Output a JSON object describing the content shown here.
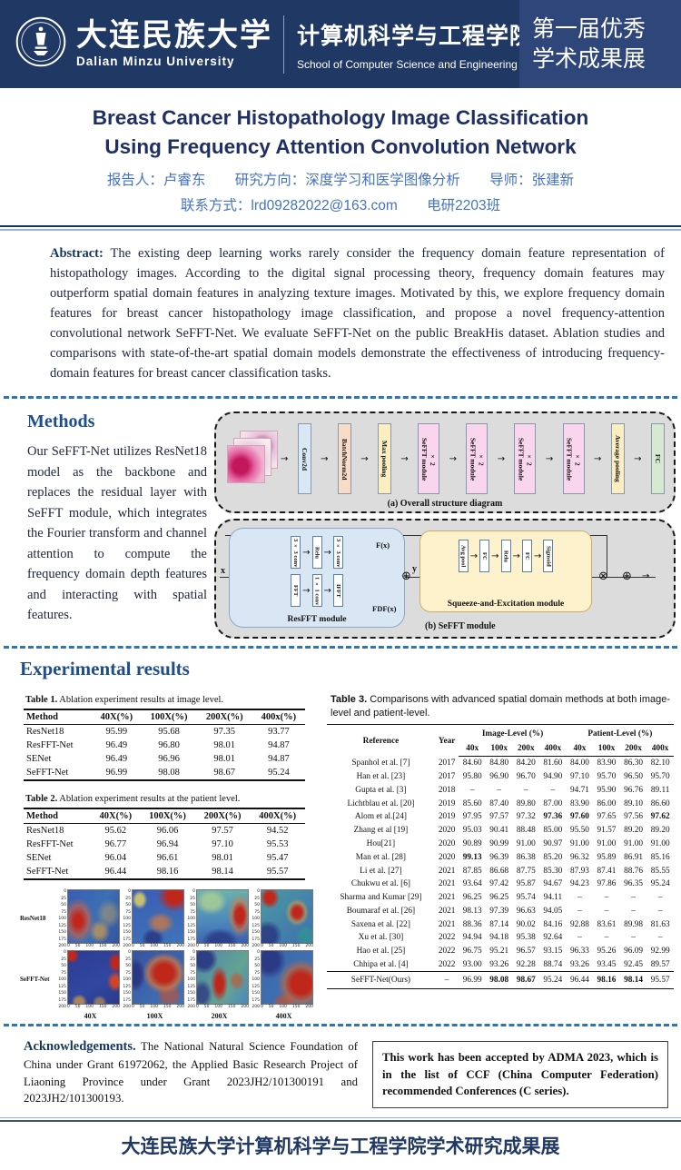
{
  "header": {
    "university_cn": "大连民族大学",
    "university_en": "Dalian Minzu University",
    "college_cn": "计算机科学与工程学院",
    "college_en": "School of Computer Science and Engineering",
    "banner_line1": "第一届优秀",
    "banner_line2": "学术成果展",
    "header_bg": "#203864",
    "banner_bg": "#2e4679"
  },
  "title": {
    "line1": "Breast Cancer Histopathology Image  Classification",
    "line2": "Using Frequency Attention Convolution Network",
    "presenter": "报告人：卢睿东",
    "direction": "研究方向：深度学习和医学图像分析",
    "advisor": "导师：张建新",
    "contact": "联系方式：lrd09282022@163.com",
    "class_name": "电研2203班"
  },
  "abstract": {
    "label": "Abstract:",
    "text": "The existing deep learning works rarely consider the frequency domain feature representation of histopathology images. According to the digital signal processing theory, frequency domain features may outperform spatial domain features in analyzing texture images. Motivated by this, we explore frequency domain features for breast cancer histopathology image classification, and propose a novel frequency-attention convolutional network SeFFT-Net. We evaluate SeFFT-Net on the public BreakHis dataset. Ablation studies and comparisons with state-of-the-art spatial domain models demonstrate the effectiveness of introducing frequency-domain features for breast cancer classification tasks."
  },
  "methods": {
    "heading": "Methods",
    "text": "Our SeFFT-Net utilizes ResNet18 model as the backbone and replaces the residual layer with SeFFT module, which integrates the Fourier transform and channel attention to compute the frequency domain depth features and interacting with spatial features."
  },
  "diagram_a": {
    "caption": "(a) Overall structure diagram",
    "blocks": [
      {
        "label": "Conv2d",
        "color": "#d9e8f6"
      },
      {
        "label": "BatchNorm2d",
        "color": "#f8dcc7"
      },
      {
        "label": "Max pooling",
        "color": "#fdeec2"
      },
      {
        "label": "SeFFT module|× 2",
        "color": "#fad6ee"
      },
      {
        "label": "SeFFT module|× 2",
        "color": "#fad6ee"
      },
      {
        "label": "SeFFT module|× 2",
        "color": "#fad6ee"
      },
      {
        "label": "SeFFT module|× 2",
        "color": "#fad6ee"
      },
      {
        "label": "Average pooling",
        "color": "#fdeec2"
      },
      {
        "label": "FC",
        "color": "#d7e9d1"
      }
    ]
  },
  "diagram_b": {
    "caption": "(b)  SeFFT module",
    "x_label": "x",
    "y_label": "y",
    "fx_label": "F(x)",
    "fdf_label": "FDF(x)",
    "plus_symbol": "⊕",
    "times_symbol": "⊗",
    "resfft": {
      "label": "ResFFT module",
      "top": [
        "3 × 3 conv",
        "Relu",
        "3 × 3 conv"
      ],
      "bottom": [
        "FFT",
        "1 × 1 conv",
        "IFFT"
      ]
    },
    "se": {
      "label": "Squeeze-and-Excitation module",
      "blocks": [
        "Avg pool",
        "FC",
        "Relu",
        "FC",
        "Sigmoid"
      ]
    }
  },
  "results": {
    "heading": "Experimental results",
    "table1": {
      "caption_label": "Table 1.",
      "caption": "Ablation experiment results at image level.",
      "headers": [
        "Method",
        "40X(%)",
        "100X(%)",
        "200X(%)",
        "400x(%)"
      ],
      "rows": [
        [
          "ResNet18",
          "95.99",
          "95.68",
          "97.35",
          "93.77"
        ],
        [
          "ResFFT-Net",
          "96.49",
          "96.80",
          "98.01",
          "94.87"
        ],
        [
          "SENet",
          "96.49",
          "96.96",
          "98.01",
          "94.87"
        ],
        [
          "SeFFT-Net",
          "96.99",
          "98.08",
          "98.67",
          "95.24"
        ]
      ]
    },
    "table2": {
      "caption_label": "Table 2.",
      "caption": "Ablation experiment results at the patient level.",
      "headers": [
        "Method",
        "40X(%)",
        "100X(%)",
        "200X(%)",
        "400X(%)"
      ],
      "rows": [
        [
          "ResNet18",
          "95.62",
          "96.06",
          "97.57",
          "94.52"
        ],
        [
          "ResFFT-Net",
          "96.77",
          "96.94",
          "97.10",
          "95.53"
        ],
        [
          "SENet",
          "96.04",
          "96.61",
          "98.01",
          "95.47"
        ],
        [
          "SeFFT-Net",
          "96.44",
          "98.16",
          "98.14",
          "95.57"
        ]
      ]
    },
    "table3": {
      "caption_label": "Table 3.",
      "caption": "Comparisons with advanced spatial domain methods at both image-level  and patient-level.",
      "col_reference": "Reference",
      "col_year": "Year",
      "group_image": "Image-Level (%)",
      "group_patient": "Patient-Level (%)",
      "sub_headers": [
        "40x",
        "100x",
        "200x",
        "400x",
        "40x",
        "100x",
        "200x",
        "400x"
      ],
      "rows": [
        {
          "c": [
            "Spanhol et al. [7]",
            "2017",
            "84.60",
            "84.80",
            "84.20",
            "81.60",
            "84.00",
            "83.90",
            "86.30",
            "82.10"
          ],
          "b": []
        },
        {
          "c": [
            "Han et al. [23]",
            "2017",
            "95.80",
            "96.90",
            "96.70",
            "94.90",
            "97.10",
            "95.70",
            "96.50",
            "95.70"
          ],
          "b": []
        },
        {
          "c": [
            "Gupta et al. [3]",
            "2018",
            "–",
            "–",
            "–",
            "–",
            "94.71",
            "95.90",
            "96.76",
            "89.11"
          ],
          "b": []
        },
        {
          "c": [
            "Lichtblau et al. [20]",
            "2019",
            "85.60",
            "87.40",
            "89.80",
            "87.00",
            "83.90",
            "86.00",
            "89.10",
            "86.60"
          ],
          "b": []
        },
        {
          "c": [
            "Alom et al.[24]",
            "2019",
            "97.95",
            "97.57",
            "97.32",
            "97.36",
            "97.60",
            "97.65",
            "97.56",
            "97.62"
          ],
          "b": [
            5,
            6,
            9
          ]
        },
        {
          "c": [
            "Zhang et al [19]",
            "2020",
            "95.03",
            "90.41",
            "88.48",
            "85.00",
            "95.50",
            "91.57",
            "89.20",
            "89.20"
          ],
          "b": []
        },
        {
          "c": [
            "Hou[21]",
            "2020",
            "90.89",
            "90.99",
            "91.00",
            "90.97",
            "91.00",
            "91.00",
            "91.00",
            "91.00"
          ],
          "b": []
        },
        {
          "c": [
            "Man et al. [28]",
            "2020",
            "99.13",
            "96.39",
            "86.38",
            "85.20",
            "96.32",
            "95.89",
            "86.91",
            "85.16"
          ],
          "b": [
            2
          ]
        },
        {
          "c": [
            "Li et al. [27]",
            "2021",
            "87.85",
            "86.68",
            "87.75",
            "85.30",
            "87.93",
            "87.41",
            "88.76",
            "85.55"
          ],
          "b": []
        },
        {
          "c": [
            "Chukwu et al. [6]",
            "2021",
            "93.64",
            "97.42",
            "95.87",
            "94.67",
            "94.23",
            "97.86",
            "96.35",
            "95.24"
          ],
          "b": []
        },
        {
          "c": [
            "Sharma and Kumar [29]",
            "2021",
            "96.25",
            "96.25",
            "95.74",
            "94.11",
            "–",
            "–",
            "–",
            "–"
          ],
          "b": []
        },
        {
          "c": [
            "Boumaraf et al. [26]",
            "2021",
            "98.13",
            "97.39",
            "96.63",
            "94.05",
            "–",
            "–",
            "–",
            "–"
          ],
          "b": []
        },
        {
          "c": [
            "Saxena et al. [22]",
            "2021",
            "88.36",
            "87.14",
            "90.02",
            "84.16",
            "92.88",
            "83.61",
            "89.98",
            "81.63"
          ],
          "b": []
        },
        {
          "c": [
            "Xu et al. [30]",
            "2022",
            "94.94",
            "94.18",
            "95.38",
            "92.64",
            "–",
            "–",
            "–",
            "–"
          ],
          "b": []
        },
        {
          "c": [
            "Hao et al. [25]",
            "2022",
            "96.75",
            "95.21",
            "96.57",
            "93.15",
            "96.33",
            "95.26",
            "96.09",
            "92.99"
          ],
          "b": []
        },
        {
          "c": [
            "Chhipa et al. [4]",
            "2022",
            "93.00",
            "93.26",
            "92.28",
            "88.74",
            "93.26",
            "93.45",
            "92.45",
            "89.57"
          ],
          "b": []
        },
        {
          "c": [
            "SeFFT-Net(Ours)",
            "–",
            "96.99",
            "98.08",
            "98.67",
            "95.24",
            "96.44",
            "98.16",
            "98.14",
            "95.57"
          ],
          "b": [
            3,
            4,
            7,
            8
          ]
        }
      ]
    },
    "heatmaps": {
      "row_labels": [
        "ResNet18",
        "SeFFT-Net"
      ],
      "col_labels": [
        "40X",
        "100X",
        "200X",
        "400X"
      ],
      "y_ticks": [
        "0",
        "25",
        "50",
        "75",
        "100",
        "125",
        "150",
        "175",
        "200"
      ],
      "x_ticks": [
        "0",
        "50",
        "100",
        "150",
        "200"
      ]
    }
  },
  "acknowledgements": {
    "label": "Acknowledgements.",
    "text": "The National Natural Science Foundation of China under Grant 61972062, the Applied Basic Research Project of Liaoning Province under Grant 2023JH2/101300191  and 2023JH2/101300193."
  },
  "accepted_note": "This work has been accepted by ADMA 2023, which is in the list of CCF (China Computer Federation) recommended  Conferences (C series).",
  "footer": "大连民族大学计算机科学与工程学院学术研究成果展"
}
